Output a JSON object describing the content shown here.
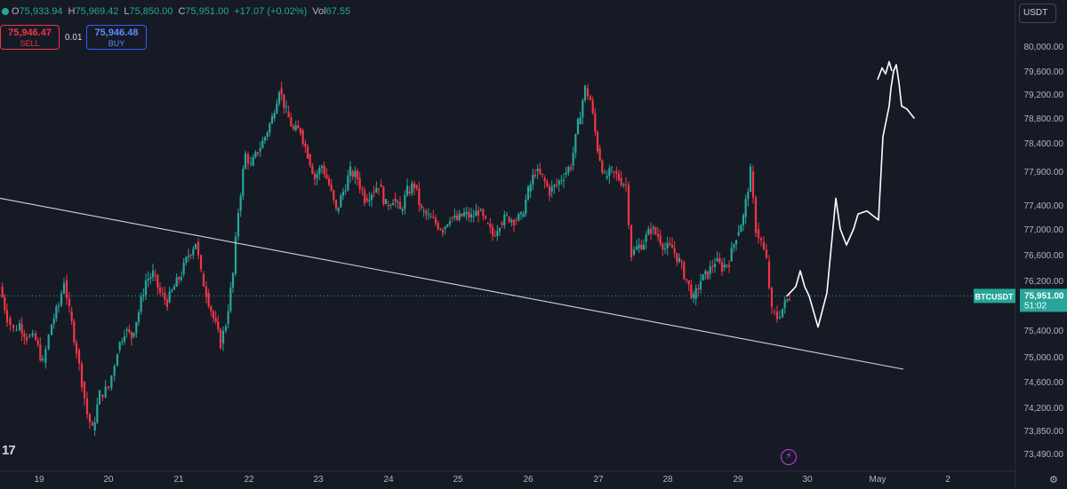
{
  "header": {
    "open_label": "O",
    "open": "75,933.94",
    "high_label": "H",
    "high": "75,969.42",
    "low_label": "L",
    "low": "75,850.00",
    "close_label": "C",
    "close": "75,951.00",
    "change": "+17.07 (+0.02%)",
    "vol_label": "Vol",
    "volume": "67.55"
  },
  "trade": {
    "sell_price": "75,946.47",
    "sell_label": "SELL",
    "quantity": "0.01",
    "buy_price": "75,946.48",
    "buy_label": "BUY"
  },
  "currency": "USDT",
  "logo_text": "17",
  "symbol_badge": {
    "symbol": "BTCUSDT",
    "price": "75,951.00",
    "countdown": "51:02"
  },
  "colors": {
    "background": "#161a25",
    "up": "#26a69a",
    "down": "#f23645",
    "accent": "#c840e9",
    "drawing": "#ffffff"
  },
  "chart_data": {
    "type": "candlestick",
    "price_axis": [
      "80,000.00",
      "79,600.00",
      "79,200.00",
      "78,800.00",
      "78,400.00",
      "77,900.00",
      "77,400.00",
      "77,000.00",
      "76,600.00",
      "76,200.00",
      "75,400.00",
      "75,000.00",
      "74,600.00",
      "74,200.00",
      "73,850.00",
      "73,490.00"
    ],
    "ylim": [
      73490,
      80150
    ],
    "x_axis": [
      "19",
      "20",
      "21",
      "22",
      "23",
      "24",
      "25",
      "26",
      "27",
      "28",
      "29",
      "30",
      "May",
      "2"
    ],
    "last_price": 75951,
    "candles_path": [
      [
        0,
        76100
      ],
      [
        8,
        75600
      ],
      [
        15,
        75400
      ],
      [
        22,
        75500
      ],
      [
        30,
        75300
      ],
      [
        40,
        75250
      ],
      [
        48,
        74900
      ],
      [
        58,
        75500
      ],
      [
        66,
        75800
      ],
      [
        72,
        76200
      ],
      [
        78,
        75700
      ],
      [
        86,
        75100
      ],
      [
        92,
        74600
      ],
      [
        98,
        74100
      ],
      [
        104,
        73850
      ],
      [
        112,
        74400
      ],
      [
        122,
        74500
      ],
      [
        132,
        75100
      ],
      [
        140,
        75400
      ],
      [
        148,
        75300
      ],
      [
        156,
        75700
      ],
      [
        164,
        76200
      ],
      [
        172,
        76300
      ],
      [
        180,
        76000
      ],
      [
        188,
        75850
      ],
      [
        196,
        76100
      ],
      [
        204,
        76300
      ],
      [
        212,
        76600
      ],
      [
        220,
        76800
      ],
      [
        226,
        76300
      ],
      [
        232,
        76000
      ],
      [
        240,
        75600
      ],
      [
        248,
        75200
      ],
      [
        254,
        75500
      ],
      [
        262,
        76300
      ],
      [
        268,
        77300
      ],
      [
        276,
        78200
      ],
      [
        282,
        78000
      ],
      [
        290,
        78250
      ],
      [
        298,
        78500
      ],
      [
        306,
        78800
      ],
      [
        314,
        79300
      ],
      [
        322,
        78900
      ],
      [
        330,
        78600
      ],
      [
        338,
        78600
      ],
      [
        346,
        78200
      ],
      [
        354,
        77800
      ],
      [
        362,
        78000
      ],
      [
        370,
        77700
      ],
      [
        378,
        77300
      ],
      [
        386,
        77600
      ],
      [
        394,
        77900
      ],
      [
        402,
        77800
      ],
      [
        410,
        77500
      ],
      [
        418,
        77600
      ],
      [
        426,
        77700
      ],
      [
        434,
        77400
      ],
      [
        442,
        77500
      ],
      [
        450,
        77300
      ],
      [
        458,
        77600
      ],
      [
        466,
        77700
      ],
      [
        474,
        77300
      ],
      [
        482,
        77200
      ],
      [
        490,
        77100
      ],
      [
        498,
        77000
      ],
      [
        506,
        77200
      ],
      [
        514,
        77150
      ],
      [
        522,
        77250
      ],
      [
        530,
        77200
      ],
      [
        538,
        77300
      ],
      [
        546,
        77100
      ],
      [
        554,
        76900
      ],
      [
        562,
        77100
      ],
      [
        570,
        77200
      ],
      [
        578,
        77150
      ],
      [
        586,
        77200
      ],
      [
        594,
        77600
      ],
      [
        602,
        77900
      ],
      [
        610,
        77800
      ],
      [
        618,
        77600
      ],
      [
        626,
        77700
      ],
      [
        634,
        77850
      ],
      [
        642,
        78000
      ],
      [
        650,
        78700
      ],
      [
        658,
        79300
      ],
      [
        664,
        79100
      ],
      [
        672,
        78300
      ],
      [
        680,
        77800
      ],
      [
        688,
        77900
      ],
      [
        696,
        77800
      ],
      [
        704,
        77700
      ],
      [
        710,
        76600
      ],
      [
        716,
        76700
      ],
      [
        724,
        76800
      ],
      [
        732,
        77000
      ],
      [
        740,
        76900
      ],
      [
        748,
        76700
      ],
      [
        756,
        76700
      ],
      [
        764,
        76500
      ],
      [
        772,
        76200
      ],
      [
        780,
        75900
      ],
      [
        788,
        76200
      ],
      [
        796,
        76300
      ],
      [
        804,
        76500
      ],
      [
        812,
        76400
      ],
      [
        820,
        76500
      ],
      [
        828,
        76900
      ],
      [
        836,
        77200
      ],
      [
        844,
        77900
      ],
      [
        850,
        77000
      ],
      [
        856,
        76800
      ],
      [
        862,
        76500
      ],
      [
        868,
        75700
      ],
      [
        874,
        75600
      ],
      [
        880,
        75750
      ],
      [
        888,
        75951
      ]
    ],
    "trendline": [
      [
        0,
        77500
      ],
      [
        1016,
        74800
      ]
    ],
    "projection_path": [
      [
        885,
        75950
      ],
      [
        895,
        76100
      ],
      [
        900,
        76350
      ],
      [
        905,
        76100
      ],
      [
        910,
        75950
      ],
      [
        915,
        75700
      ],
      [
        920,
        75450
      ],
      [
        930,
        76000
      ],
      [
        940,
        77500
      ],
      [
        945,
        77000
      ],
      [
        952,
        76750
      ],
      [
        960,
        77000
      ],
      [
        965,
        77250
      ],
      [
        975,
        77300
      ],
      [
        988,
        77150
      ],
      [
        993,
        78500
      ],
      [
        1000,
        79000
      ],
      [
        1002,
        79300
      ],
      [
        1005,
        79600
      ],
      [
        1008,
        79700
      ],
      [
        1011,
        79400
      ],
      [
        1014,
        79000
      ],
      [
        1020,
        78950
      ],
      [
        1028,
        78800
      ]
    ],
    "projection_top_zigzag": [
      [
        987,
        79450
      ],
      [
        992,
        79650
      ],
      [
        996,
        79550
      ],
      [
        1000,
        79750
      ],
      [
        1003,
        79600
      ]
    ],
    "price_ticks_rows": [
      52,
      80,
      106,
      133,
      161,
      193,
      231,
      258,
      287,
      316,
      372,
      402,
      430,
      459,
      485,
      511
    ]
  }
}
